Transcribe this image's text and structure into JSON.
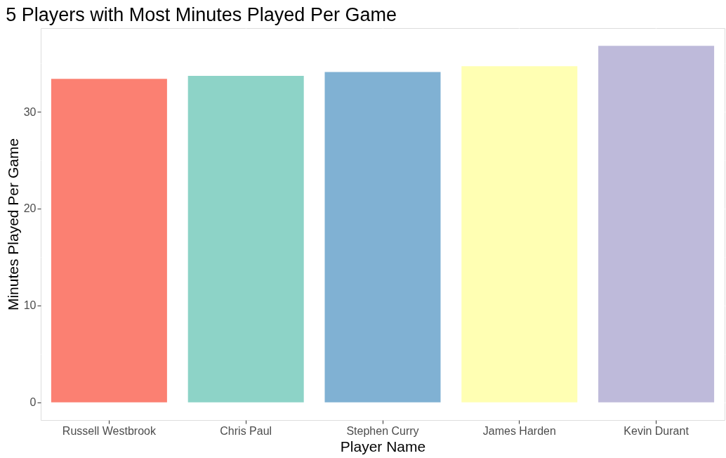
{
  "chart_data": {
    "type": "bar",
    "title": "5 Players with Most Minutes Played Per Game",
    "xlabel": "Player Name",
    "ylabel": "Minutes Played Per Game",
    "categories": [
      "Russell Westbrook",
      "Chris Paul",
      "Stephen Curry",
      "James Harden",
      "Kevin Durant"
    ],
    "values": [
      33.4,
      33.7,
      34.1,
      34.7,
      36.8
    ],
    "colors": [
      "#fb8072",
      "#8dd3c7",
      "#80b1d3",
      "#ffffb3",
      "#bebada"
    ],
    "ylim": [
      -1.84,
      38.64
    ],
    "yticks": [
      0,
      {
        "value": 5,
        "label": null
      },
      10,
      {
        "value": 15,
        "label": null
      },
      20,
      {
        "value": 25,
        "label": null
      },
      30,
      {
        "value": 35,
        "label": null
      }
    ],
    "grid": true,
    "legend": false
  }
}
